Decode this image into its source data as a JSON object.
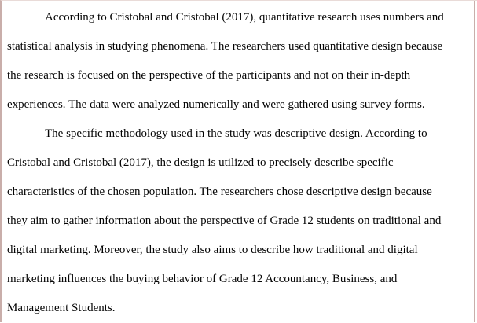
{
  "page": {
    "background_color": "#ffffff",
    "edge_line_color": "#c9aeaa",
    "text_color": "#040404"
  },
  "document": {
    "paragraphs": [
      {
        "lines": [
          "According to Cristobal and Cristobal (2017), quantitative research uses numbers and",
          "statistical analysis in studying phenomena. The researchers used quantitative design because",
          "the research is focused on the perspective of the participants and not on their in-depth",
          "experiences. The data were analyzed numerically and were gathered using survey forms."
        ]
      },
      {
        "lines": [
          "The specific methodology used in the study was descriptive design. According to",
          "Cristobal and Cristobal (2017), the design is utilized to precisely describe specific",
          "characteristics of the chosen population. The researchers chose descriptive design because",
          "they aim to gather information about the perspective of Grade 12 students on traditional and",
          "digital marketing. Moreover, the study also aims to describe how traditional and digital",
          "marketing influences the buying behavior of Grade 12 Accountancy, Business, and",
          "Management Students."
        ]
      }
    ]
  }
}
